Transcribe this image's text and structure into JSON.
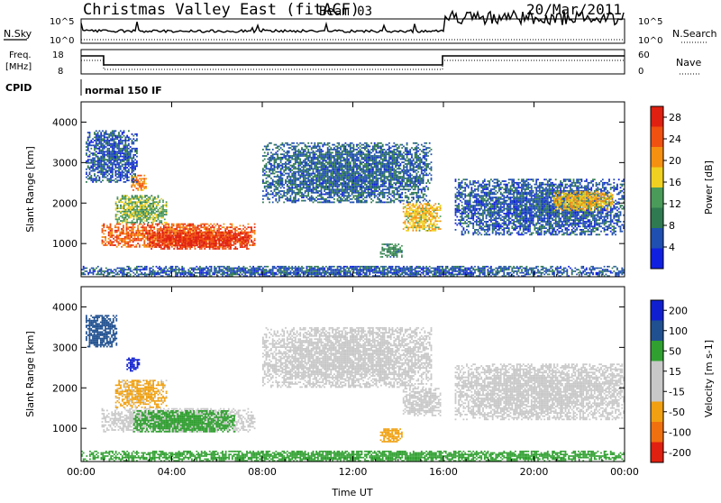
{
  "header": {
    "station": "Christmas Valley East (fitACF)",
    "beam": "Beam 03",
    "date": "20/Mar/2011"
  },
  "top_panels": {
    "nsky_label": "N.Sky",
    "nsearch_label": "N.Search",
    "freq_label_line1": "Freq.",
    "freq_label_line2": "[MHz]",
    "nave_label": "Nave",
    "cpid_label": "CPID",
    "cpid_text": "normal 150 IF",
    "nsky_ticks": [
      "10^5",
      "10^0"
    ],
    "nsearch_ticks": [
      "10^5",
      "10^0"
    ],
    "freq_ticks": [
      "18",
      "8"
    ],
    "nave_ticks": [
      "60",
      "0"
    ]
  },
  "colors": {
    "frame": "#000000",
    "power_scale": [
      "#1020e0",
      "#1f4fb0",
      "#2f7a50",
      "#4a9a5a",
      "#f0d020",
      "#f59010",
      "#f05010",
      "#e02010"
    ],
    "velocity_scale": [
      "#1020d0",
      "#205090",
      "#30a030",
      "#c8c8c8",
      "#c8c8c8",
      "#f0a010",
      "#f07010",
      "#e02010"
    ]
  },
  "chart_data": [
    {
      "type": "heatmap",
      "name": "Power",
      "ylabel": "Slant Range [km]",
      "xlabel": "",
      "x_ticks": [
        "00:00",
        "04:00",
        "08:00",
        "12:00",
        "16:00",
        "20:00",
        "00:00"
      ],
      "x_range_hours": [
        0,
        24
      ],
      "y_ticks": [
        1000,
        2000,
        3000,
        4000
      ],
      "ylim": [
        180,
        4500
      ],
      "colorbar_title": "Power [dB]",
      "colorbar_ticks": [
        4,
        8,
        12,
        16,
        20,
        24,
        28
      ],
      "colorbar_range": [
        0,
        30
      ],
      "regions": [
        {
          "t0": 0.9,
          "t1": 7.7,
          "r0": 900,
          "r1": 1500,
          "value": 24
        },
        {
          "t0": 3.0,
          "t1": 7.5,
          "r0": 850,
          "r1": 1300,
          "value": 28
        },
        {
          "t0": 1.5,
          "t1": 3.8,
          "r0": 1500,
          "r1": 2200,
          "value": 14
        },
        {
          "t0": 2.2,
          "t1": 2.9,
          "r0": 2300,
          "r1": 2700,
          "value": 22
        },
        {
          "t0": 0.2,
          "t1": 2.5,
          "r0": 2500,
          "r1": 3800,
          "value": 6
        },
        {
          "t0": 8.0,
          "t1": 15.5,
          "r0": 2000,
          "r1": 3500,
          "value": 7
        },
        {
          "t0": 14.2,
          "t1": 15.9,
          "r0": 1300,
          "r1": 2000,
          "value": 18
        },
        {
          "t0": 13.2,
          "t1": 14.2,
          "r0": 650,
          "r1": 1000,
          "value": 10
        },
        {
          "t0": 16.5,
          "t1": 24.0,
          "r0": 1200,
          "r1": 2600,
          "value": 6
        },
        {
          "t0": 20.8,
          "t1": 23.5,
          "r0": 1800,
          "r1": 2300,
          "value": 18
        },
        {
          "t0": 0.0,
          "t1": 24.0,
          "r0": 180,
          "r1": 450,
          "value": 6
        }
      ]
    },
    {
      "type": "heatmap",
      "name": "Velocity",
      "ylabel": "Slant Range [km]",
      "xlabel": "Time UT",
      "x_ticks": [
        "00:00",
        "04:00",
        "08:00",
        "12:00",
        "16:00",
        "20:00",
        "00:00"
      ],
      "x_range_hours": [
        0,
        24
      ],
      "y_ticks": [
        1000,
        2000,
        3000,
        4000
      ],
      "ylim": [
        180,
        4500
      ],
      "colorbar_title": "Velocity [m s-1]",
      "colorbar_ticks": [
        200,
        100,
        50,
        15,
        -15,
        -50,
        -100,
        -200
      ],
      "regions": [
        {
          "t0": 0.9,
          "t1": 7.7,
          "r0": 900,
          "r1": 1500,
          "value": 0
        },
        {
          "t0": 2.3,
          "t1": 6.8,
          "r0": 900,
          "r1": 1450,
          "value": 40
        },
        {
          "t0": 1.5,
          "t1": 3.8,
          "r0": 1500,
          "r1": 2200,
          "value": -30
        },
        {
          "t0": 2.0,
          "t1": 2.6,
          "r0": 2400,
          "r1": 2750,
          "value": 200
        },
        {
          "t0": 0.2,
          "t1": 1.6,
          "r0": 3000,
          "r1": 3800,
          "value": 120
        },
        {
          "t0": 8.0,
          "t1": 15.5,
          "r0": 2000,
          "r1": 3500,
          "value": 0
        },
        {
          "t0": 14.2,
          "t1": 15.9,
          "r0": 1300,
          "r1": 2000,
          "value": 0
        },
        {
          "t0": 13.2,
          "t1": 14.2,
          "r0": 650,
          "r1": 1000,
          "value": -40
        },
        {
          "t0": 16.5,
          "t1": 24.0,
          "r0": 1200,
          "r1": 2600,
          "value": 0
        },
        {
          "t0": 0.0,
          "t1": 24.0,
          "r0": 180,
          "r1": 450,
          "value": 40
        }
      ]
    }
  ]
}
